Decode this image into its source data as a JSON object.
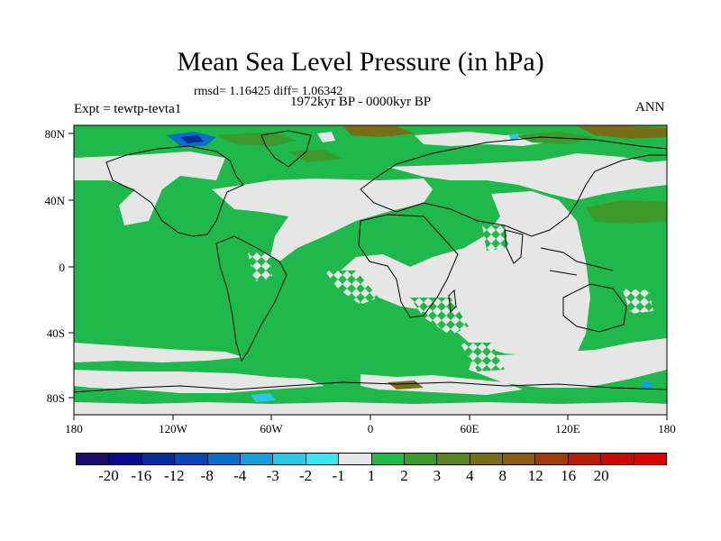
{
  "header": {
    "title": "Mean Sea Level Pressure (in hPa)",
    "stats": "rmsd= 1.16425 diff= 1.06342",
    "period": "1972kyr BP - 0000kyr BP",
    "experiment": "Expt = tewtp-tevta1",
    "season": "ANN"
  },
  "map": {
    "lon_labels": [
      "180",
      "120W",
      "60W",
      "0",
      "60E",
      "120E",
      "180"
    ],
    "lat_labels": [
      "80N",
      "40N",
      "0",
      "40S",
      "80S"
    ],
    "land_color": "#1fb84a",
    "neutral_color": "#e6e6e6"
  },
  "colorbar": {
    "colors": [
      "#1e0a6e",
      "#0a0a8c",
      "#0a2aa0",
      "#0a46b4",
      "#0a6ec8",
      "#14a0dc",
      "#2ac8e6",
      "#3ce6f0",
      "#e6e6e6",
      "#1fb84a",
      "#3c9a2a",
      "#5a8420",
      "#786e18",
      "#8c5a10",
      "#a03c08",
      "#b41e04",
      "#c80a00",
      "#dc0000"
    ],
    "labels": [
      "-20",
      "-16",
      "-12",
      "-8",
      "-4",
      "-3",
      "-2",
      "-1",
      "1",
      "2",
      "3",
      "4",
      "8",
      "12",
      "16",
      "20"
    ]
  }
}
